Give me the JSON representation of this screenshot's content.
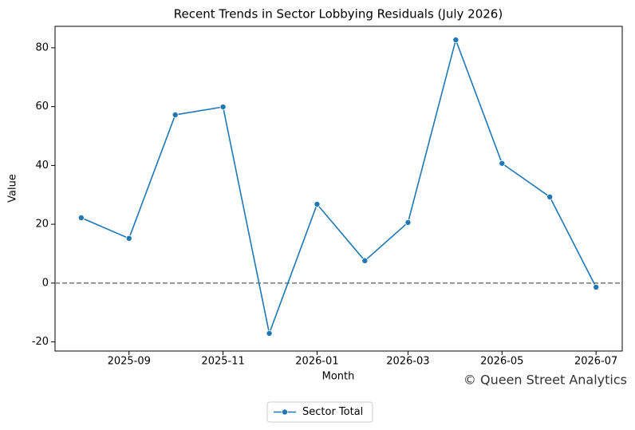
{
  "chart_data": {
    "type": "line",
    "title": "Recent Trends in Sector Lobbying Residuals (July 2026)",
    "x_label": "Month",
    "y_label": "Value",
    "x": [
      "2025-08",
      "2025-09",
      "2025-10",
      "2025-11",
      "2025-12",
      "2026-01",
      "2026-02",
      "2026-03",
      "2026-04",
      "2026-05",
      "2026-06",
      "2026-07"
    ],
    "series": [
      {
        "name": "Sector Total",
        "color": "#1f77b4",
        "values": [
          22.2,
          15.2,
          57.2,
          59.9,
          -17.1,
          26.8,
          7.6,
          20.6,
          82.7,
          40.7,
          29.3,
          -1.4
        ]
      }
    ],
    "xlim": [
      "2025-07-15",
      "2026-07-18"
    ],
    "xticks": [
      "2025-09",
      "2025-11",
      "2026-01",
      "2026-03",
      "2026-05",
      "2026-07"
    ],
    "ylim": [
      -23.1,
      87.3
    ],
    "yticks": [
      -20,
      0,
      20,
      40,
      60,
      80
    ],
    "hline": {
      "value": 0,
      "color": "#808080"
    },
    "watermark": "© Queen Street Analytics",
    "legend": "bottom"
  }
}
